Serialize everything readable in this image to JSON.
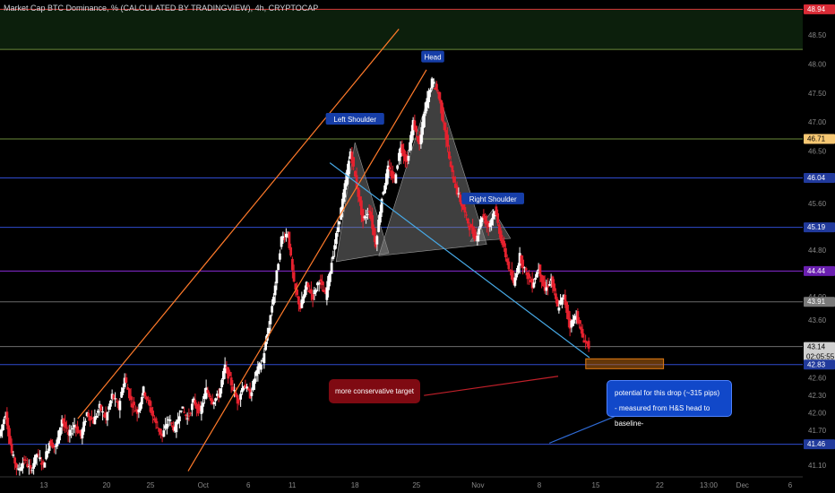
{
  "title": "Market Cap BTC Dominance, % (CALCULATED BY TRADINGVIEW), 4h, CRYPTOCAP",
  "colors": {
    "background": "#000000",
    "candle_up": "#ffffff",
    "candle_down": "#e5212e",
    "channel": "#ff7a2a",
    "trend_line": "#47a9e6",
    "pattern_fill": "#8c8c8c",
    "level_blue": "#2f4bcf",
    "level_purple": "#8a2bd6",
    "level_gray": "#6b6b6b",
    "level_green": "#6a8a3a",
    "level_red": "#d93a3a",
    "target_box": "#b8650f",
    "label_bg": "#163ea8"
  },
  "chart_data": {
    "type": "candlestick",
    "title": "Market Cap BTC Dominance, % (CALCULATED BY TRADINGVIEW), 4h, CRYPTOCAP",
    "y_ticks": [
      "48.50",
      "48.00",
      "47.50",
      "47.00",
      "46.50",
      "45.60",
      "44.80",
      "44.00",
      "43.60",
      "42.60",
      "42.30",
      "42.00",
      "41.70",
      "41.10"
    ],
    "x_ticks": [
      "13",
      "20",
      "25",
      "Oct",
      "6",
      "11",
      "18",
      "25",
      "Nov",
      "8",
      "15",
      "22",
      "13:00",
      "Dec",
      "6"
    ],
    "ylim": [
      40.9,
      49.1
    ],
    "x_range": [
      0,
      64
    ],
    "price_tags": [
      {
        "value": 48.94,
        "label": "48.94",
        "style": "red"
      },
      {
        "value": 46.71,
        "label": "46.71",
        "style": "orange"
      },
      {
        "value": 46.04,
        "label": "46.04",
        "style": "blue"
      },
      {
        "value": 45.19,
        "label": "45.19",
        "style": "blue"
      },
      {
        "value": 44.44,
        "label": "44.44",
        "style": "purple"
      },
      {
        "value": 43.91,
        "label": "43.91",
        "style": "gray"
      },
      {
        "value": 43.14,
        "label": "43.14",
        "sublabel": "02:05:55",
        "style": "current"
      },
      {
        "value": 42.83,
        "label": "42.83",
        "style": "blue"
      },
      {
        "value": 41.46,
        "label": "41.46",
        "style": "blue"
      }
    ],
    "levels": [
      {
        "value": 48.94,
        "color": "red"
      },
      {
        "value": 48.25,
        "color": "green"
      },
      {
        "value": 46.71,
        "color": "green"
      },
      {
        "value": 46.04,
        "color": "blue"
      },
      {
        "value": 45.19,
        "color": "blue"
      },
      {
        "value": 44.44,
        "color": "purple"
      },
      {
        "value": 43.91,
        "color": "gray"
      },
      {
        "value": 43.14,
        "color": "gray"
      },
      {
        "value": 42.83,
        "color": "blue"
      },
      {
        "value": 41.46,
        "color": "blue"
      }
    ],
    "price_path": [
      [
        0,
        41.6
      ],
      [
        0.5,
        42.0
      ],
      [
        1,
        41.3
      ],
      [
        1.5,
        41.0
      ],
      [
        2,
        41.2
      ],
      [
        2.5,
        41.0
      ],
      [
        3,
        41.3
      ],
      [
        3.5,
        41.1
      ],
      [
        4,
        41.5
      ],
      [
        4.5,
        41.4
      ],
      [
        5,
        41.9
      ],
      [
        5.5,
        41.6
      ],
      [
        6,
        41.8
      ],
      [
        6.5,
        41.6
      ],
      [
        7,
        42.0
      ],
      [
        7.5,
        41.85
      ],
      [
        8,
        42.1
      ],
      [
        8.5,
        41.9
      ],
      [
        9,
        42.3
      ],
      [
        9.5,
        42.1
      ],
      [
        10,
        42.6
      ],
      [
        10.5,
        42.2
      ],
      [
        11,
        42.0
      ],
      [
        11.5,
        42.4
      ],
      [
        12,
        42.1
      ],
      [
        12.5,
        41.8
      ],
      [
        13,
        41.6
      ],
      [
        13.5,
        41.9
      ],
      [
        14,
        41.7
      ],
      [
        14.5,
        42.1
      ],
      [
        15,
        41.9
      ],
      [
        15.5,
        42.2
      ],
      [
        16,
        42.0
      ],
      [
        16.5,
        42.4
      ],
      [
        17,
        42.2
      ],
      [
        17.5,
        42.3
      ],
      [
        18,
        42.8
      ],
      [
        18.5,
        42.5
      ],
      [
        19,
        42.2
      ],
      [
        19.5,
        42.5
      ],
      [
        20,
        42.3
      ],
      [
        20.5,
        42.7
      ],
      [
        21,
        42.9
      ],
      [
        21.5,
        43.5
      ],
      [
        22,
        44.2
      ],
      [
        22.5,
        45.0
      ],
      [
        23,
        45.1
      ],
      [
        23.5,
        44.2
      ],
      [
        24,
        43.8
      ],
      [
        24.5,
        44.2
      ],
      [
        25,
        44.0
      ],
      [
        25.5,
        44.3
      ],
      [
        26,
        44.0
      ],
      [
        26.5,
        44.6
      ],
      [
        27,
        45.2
      ],
      [
        27.5,
        45.8
      ],
      [
        28,
        46.5
      ],
      [
        28.5,
        45.9
      ],
      [
        29,
        45.3
      ],
      [
        29.5,
        45.5
      ],
      [
        30,
        44.9
      ],
      [
        30.5,
        45.7
      ],
      [
        31,
        46.2
      ],
      [
        31.5,
        46.0
      ],
      [
        32,
        46.6
      ],
      [
        32.5,
        46.3
      ],
      [
        33,
        47.0
      ],
      [
        33.5,
        46.6
      ],
      [
        34,
        47.3
      ],
      [
        34.5,
        47.7
      ],
      [
        35,
        47.5
      ],
      [
        35.5,
        46.9
      ],
      [
        36,
        46.2
      ],
      [
        36.5,
        45.8
      ],
      [
        37,
        45.5
      ],
      [
        37.5,
        45.2
      ],
      [
        38,
        45.0
      ],
      [
        38.5,
        45.4
      ],
      [
        39,
        45.2
      ],
      [
        39.5,
        45.5
      ],
      [
        40,
        45.0
      ],
      [
        40.5,
        44.6
      ],
      [
        41,
        44.2
      ],
      [
        41.5,
        44.7
      ],
      [
        42,
        44.4
      ],
      [
        42.5,
        44.2
      ],
      [
        43,
        44.5
      ],
      [
        43.5,
        44.1
      ],
      [
        44,
        44.3
      ],
      [
        44.5,
        43.8
      ],
      [
        45,
        44.0
      ],
      [
        45.5,
        43.5
      ],
      [
        46,
        43.7
      ],
      [
        46.5,
        43.3
      ],
      [
        47,
        43.14
      ]
    ],
    "annotations": {
      "labels": [
        {
          "text": "Head",
          "x": 34.5,
          "y": 48.12
        },
        {
          "text": "Left Shoulder",
          "x": 28.3,
          "y": 47.05
        },
        {
          "text": "Right Shoulder",
          "x": 39.3,
          "y": 45.68
        }
      ],
      "notes": {
        "conservative": "more conservative target",
        "potential_line1": "potential for this drop (~315 pips)",
        "potential_line2": "- measured from H&S head to baseline-"
      }
    }
  }
}
